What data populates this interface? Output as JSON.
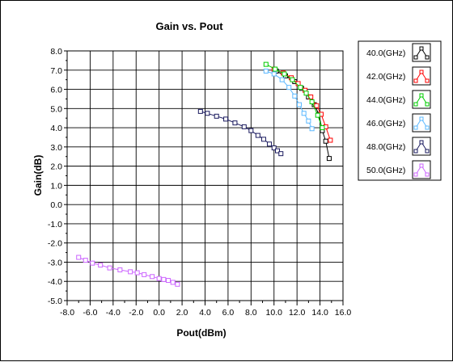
{
  "chart_data": {
    "type": "scatter",
    "title": "Gain vs. Pout",
    "xlabel": "Pout(dBm)",
    "ylabel": "Gain(dB)",
    "xlim": [
      -8.0,
      16.0
    ],
    "ylim": [
      -5.0,
      8.0
    ],
    "x_ticks": [
      "-8.0",
      "-7.0",
      "-6.0",
      "-5.0",
      "-4.0",
      "-3.0",
      "-2.0",
      "-1.0",
      "0.0",
      "1.0",
      "2.0",
      "3.0",
      "4.0",
      "5.0",
      "6.0",
      "7.0",
      "8.0",
      "9.0",
      "10.0",
      "11.0",
      "12.0",
      "13.0",
      "14.0",
      "15.0",
      "16.0"
    ],
    "x_tick_labels_shown": [
      "-8.0",
      "-6.0",
      "-4.0",
      "-2.0",
      "0.0",
      "2.0",
      "4.0",
      "6.0",
      "8.0",
      "10.0",
      "12.0",
      "14.0",
      "16.0"
    ],
    "y_ticks": [
      "8.0",
      "7.0",
      "6.0",
      "5.0",
      "4.0",
      "3.0",
      "2.0",
      "1.0",
      "0.0",
      "-1.0",
      "-2.0",
      "-3.0",
      "-4.0",
      "-5.0"
    ],
    "y_tick_labels_shown": [
      "8.0",
      "7.0",
      "6.0",
      "5.0",
      "4.0",
      "3.0",
      "2.0",
      "1.0",
      "0.0",
      "-1.0",
      "-2.0",
      "-3.0",
      "-4.0",
      "-5.0"
    ],
    "grid": true,
    "legend_position": "right",
    "marker": "square",
    "series": [
      {
        "name": "40.0(GHz)",
        "color": "#000000",
        "x": [
          10.2,
          11.0,
          11.8,
          12.4,
          13.0,
          13.5,
          13.9,
          14.2,
          14.5,
          14.8
        ],
        "y": [
          6.95,
          6.7,
          6.4,
          6.05,
          5.6,
          5.2,
          4.7,
          3.85,
          3.3,
          2.4
        ]
      },
      {
        "name": "42.0(GHz)",
        "color": "#ff0000",
        "x": [
          10.0,
          10.8,
          11.5,
          12.1,
          12.7,
          13.2,
          13.7,
          14.1,
          14.5,
          14.9
        ],
        "y": [
          7.05,
          6.85,
          6.6,
          6.3,
          5.95,
          5.6,
          5.15,
          4.7,
          4.05,
          3.35
        ]
      },
      {
        "name": "44.0(GHz)",
        "color": "#00cc00",
        "x": [
          9.3,
          10.1,
          10.9,
          11.6,
          12.3,
          12.8,
          13.3,
          13.8,
          14.2
        ],
        "y": [
          7.3,
          7.05,
          6.8,
          6.5,
          6.1,
          5.8,
          5.35,
          4.65,
          4.0
        ]
      },
      {
        "name": "46.0(GHz)",
        "color": "#5bb8ff",
        "x": [
          9.3,
          10.0,
          10.7,
          11.3,
          11.8,
          12.2,
          12.6,
          13.0,
          13.3
        ],
        "y": [
          6.95,
          6.8,
          6.5,
          6.1,
          5.65,
          5.2,
          4.75,
          4.35,
          3.95
        ]
      },
      {
        "name": "48.0(GHz)",
        "color": "#1a1a5e",
        "x": [
          3.6,
          4.2,
          5.0,
          5.8,
          6.6,
          7.4,
          8.0,
          8.6,
          9.1,
          9.6,
          10.0,
          10.3,
          10.6
        ],
        "y": [
          4.85,
          4.75,
          4.6,
          4.45,
          4.25,
          4.05,
          3.85,
          3.6,
          3.4,
          3.15,
          2.95,
          2.8,
          2.65
        ]
      },
      {
        "name": "50.0(GHz)",
        "color": "#cc66ff",
        "x": [
          -7.0,
          -6.4,
          -5.8,
          -5.1,
          -4.3,
          -3.4,
          -2.5,
          -1.9,
          -1.3,
          -0.6,
          0.0,
          0.4,
          0.8,
          1.2,
          1.6
        ],
        "y": [
          -2.75,
          -2.9,
          -3.05,
          -3.15,
          -3.3,
          -3.4,
          -3.5,
          -3.55,
          -3.65,
          -3.75,
          -3.85,
          -3.9,
          -3.95,
          -4.05,
          -4.15
        ]
      }
    ]
  }
}
